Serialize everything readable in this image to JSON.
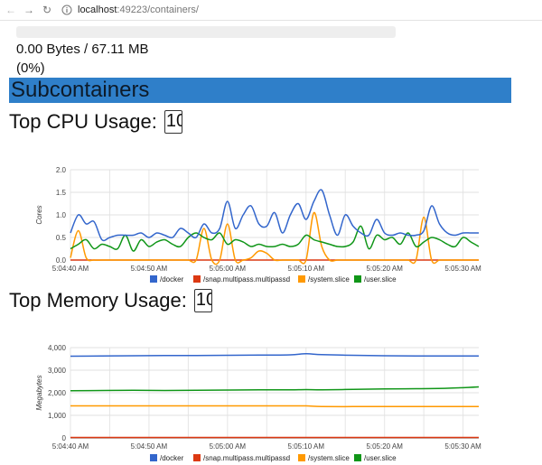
{
  "browser": {
    "url_host": "localhost",
    "url_rest": ":49223/containers/"
  },
  "memory_summary": {
    "text": "0.00 Bytes / 67.11 MB (0%)",
    "fraction": 0.0
  },
  "section_title": "Subcontainers",
  "cpu_section": {
    "label": "Top CPU Usage:",
    "input_value": "10"
  },
  "memory_section": {
    "label": "Top Memory Usage:",
    "input_value": "10"
  },
  "colors": {
    "docker": "#3366cc",
    "snap": "#dc3912",
    "system": "#ff9900",
    "user": "#109618",
    "banner": "#2f7fc9"
  },
  "chart_data": [
    {
      "type": "line",
      "ylabel": "Cores",
      "ylim": [
        0,
        2
      ],
      "yticks": [
        "0.0",
        "0.5",
        "1.0",
        "1.5",
        "2.0"
      ],
      "xticks": [
        "5:04:40 AM",
        "5:04:50 AM",
        "5:05:00 AM",
        "5:05:10 AM",
        "5:05:20 AM",
        "5:05:30 AM"
      ],
      "xtick_seconds": [
        40,
        50,
        60,
        70,
        80,
        90
      ],
      "xrange_seconds": [
        40,
        92
      ],
      "grid": true,
      "legend_position": "bottom",
      "x_seconds": [
        40,
        41,
        42,
        43,
        44,
        45,
        46,
        47,
        48,
        49,
        50,
        51,
        52,
        53,
        54,
        55,
        56,
        57,
        58,
        59,
        60,
        61,
        62,
        63,
        64,
        65,
        66,
        67,
        68,
        69,
        70,
        71,
        72,
        73,
        74,
        75,
        76,
        77,
        78,
        79,
        80,
        81,
        82,
        83,
        84,
        85,
        86,
        87,
        88,
        89,
        90,
        91,
        92
      ],
      "series": [
        {
          "name": "/docker",
          "values": [
            0.6,
            1.0,
            0.8,
            0.85,
            0.45,
            0.5,
            0.55,
            0.55,
            0.55,
            0.6,
            0.5,
            0.6,
            0.55,
            0.5,
            0.7,
            0.6,
            0.5,
            0.8,
            0.6,
            0.7,
            1.3,
            0.7,
            1.0,
            1.2,
            0.8,
            0.75,
            1.05,
            0.6,
            1.0,
            1.25,
            0.9,
            1.3,
            1.55,
            1.0,
            0.55,
            1.0,
            0.75,
            0.6,
            0.55,
            0.9,
            0.6,
            0.55,
            0.6,
            0.55,
            0.55,
            0.65,
            1.2,
            0.8,
            0.6,
            0.55,
            0.6,
            0.6,
            0.6
          ]
        },
        {
          "name": "/snap.multipass.multipassd",
          "values": [
            0,
            0,
            0,
            0,
            0,
            0,
            0,
            0,
            0,
            0,
            0,
            0,
            0,
            0,
            0,
            0,
            0,
            0,
            0,
            0,
            0,
            0,
            0,
            0,
            0,
            0,
            0,
            0,
            0,
            0,
            0,
            0,
            0,
            0,
            0,
            0,
            0,
            0,
            0,
            0,
            0,
            0,
            0,
            0,
            0,
            0,
            0,
            0,
            0,
            0,
            0,
            0,
            0
          ]
        },
        {
          "name": "/system.slice",
          "values": [
            0.05,
            0.65,
            0.05,
            0.0,
            0.0,
            0.0,
            0.0,
            0.0,
            0.0,
            0.0,
            0.0,
            0.0,
            0.0,
            0.0,
            0.0,
            0.0,
            0.0,
            0.7,
            0.0,
            0.0,
            0.8,
            0.0,
            0.0,
            0.05,
            0.2,
            0.15,
            0.0,
            0.0,
            0.0,
            0.0,
            0.0,
            1.05,
            0.3,
            0.0,
            0.0,
            0.0,
            0.0,
            0.0,
            0.0,
            0.0,
            0.0,
            0.0,
            0.0,
            0.0,
            0.0,
            0.95,
            0.0,
            0.0,
            0.0,
            0.0,
            0.0,
            0.0,
            0.0
          ]
        },
        {
          "name": "/user.slice",
          "values": [
            0.25,
            0.35,
            0.45,
            0.25,
            0.35,
            0.3,
            0.25,
            0.55,
            0.2,
            0.45,
            0.3,
            0.4,
            0.45,
            0.35,
            0.3,
            0.5,
            0.6,
            0.5,
            0.45,
            0.6,
            0.35,
            0.45,
            0.4,
            0.3,
            0.35,
            0.3,
            0.3,
            0.35,
            0.3,
            0.35,
            0.55,
            0.45,
            0.4,
            0.35,
            0.3,
            0.3,
            0.4,
            0.75,
            0.25,
            0.55,
            0.45,
            0.5,
            0.35,
            0.6,
            0.3,
            0.4,
            0.5,
            0.45,
            0.35,
            0.3,
            0.5,
            0.4,
            0.3
          ]
        }
      ]
    },
    {
      "type": "line",
      "ylabel": "Megabytes",
      "ylim": [
        0,
        4000
      ],
      "yticks": [
        "0",
        "1,000",
        "2,000",
        "3,000",
        "4,000"
      ],
      "xticks": [
        "5:04:40 AM",
        "5:04:50 AM",
        "5:05:00 AM",
        "5:05:10 AM",
        "5:05:20 AM",
        "5:05:30 AM"
      ],
      "xtick_seconds": [
        40,
        50,
        60,
        70,
        80,
        90
      ],
      "xrange_seconds": [
        40,
        92
      ],
      "grid": true,
      "legend_position": "bottom",
      "x_seconds": [
        40,
        44,
        48,
        52,
        56,
        60,
        64,
        68,
        70,
        72,
        76,
        80,
        84,
        88,
        92
      ],
      "series": [
        {
          "name": "/docker",
          "values": [
            3620,
            3630,
            3640,
            3650,
            3650,
            3660,
            3670,
            3680,
            3730,
            3690,
            3660,
            3640,
            3630,
            3630,
            3630
          ]
        },
        {
          "name": "/snap.multipass.multipassd",
          "values": [
            20,
            20,
            20,
            20,
            20,
            20,
            20,
            20,
            20,
            20,
            20,
            20,
            20,
            20,
            20
          ]
        },
        {
          "name": "/system.slice",
          "values": [
            1420,
            1420,
            1420,
            1420,
            1420,
            1420,
            1420,
            1420,
            1420,
            1390,
            1390,
            1390,
            1390,
            1390,
            1390
          ]
        },
        {
          "name": "/user.slice",
          "values": [
            2090,
            2100,
            2110,
            2100,
            2110,
            2120,
            2130,
            2130,
            2140,
            2130,
            2150,
            2170,
            2180,
            2200,
            2260
          ]
        }
      ]
    }
  ]
}
